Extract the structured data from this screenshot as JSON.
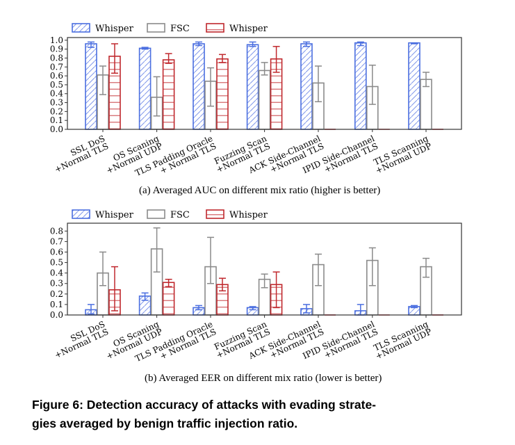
{
  "colors": {
    "whisper_blue": "#4a6ee0",
    "fsc": "#8a8a8a",
    "whisper_red": "#c0282d"
  },
  "captions": {
    "a": "(a)  Averaged AUC on different mix ratio (higher is better)",
    "b": "(b)  Averaged EER on different mix ratio (lower is better)",
    "figure_line1": "Figure 6: Detection accuracy of attacks with evading strate-",
    "figure_line2": "gies averaged by benign traffic injection ratio."
  },
  "chart_data": [
    {
      "type": "bar",
      "title": "",
      "xlabel": "",
      "ylabel": "",
      "ylim": [
        0,
        1.03
      ],
      "yticks": [
        "0.0",
        "0.1",
        "0.2",
        "0.3",
        "0.4",
        "0.5",
        "0.6",
        "0.7",
        "0.8",
        "0.9",
        "1.0"
      ],
      "legend": "top-outside",
      "categories": [
        [
          "SSL DoS",
          "+Normal TLS"
        ],
        [
          "OS Scaning",
          "+Normal UDP"
        ],
        [
          "TLS Padding Oracle",
          "+ Normal TLS"
        ],
        [
          "Fuzzing Scan",
          "+Normal TLS"
        ],
        [
          "ACK Side-Channel",
          "+Normal TLS"
        ],
        [
          "IPID Side-Channel",
          "+Normal TLS"
        ],
        [
          "TLS Scanning",
          "+Normal UDP"
        ]
      ],
      "series": [
        {
          "name": "Whisper",
          "hatch": "diagonal",
          "values": [
            0.96,
            0.91,
            0.96,
            0.95,
            0.96,
            0.97,
            0.97
          ],
          "err_low": [
            0.92,
            0.9,
            0.94,
            0.93,
            0.93,
            0.94,
            0.96
          ],
          "err_high": [
            0.98,
            0.92,
            0.98,
            0.98,
            0.98,
            0.98,
            0.97
          ]
        },
        {
          "name": "FSC",
          "hatch": "none",
          "values": [
            0.61,
            0.36,
            0.54,
            0.66,
            0.52,
            0.48,
            0.56
          ],
          "err_low": [
            0.39,
            0.15,
            0.26,
            0.61,
            0.31,
            0.28,
            0.48
          ],
          "err_high": [
            0.71,
            0.59,
            0.69,
            0.75,
            0.71,
            0.72,
            0.64
          ]
        },
        {
          "name": "Whisper",
          "hatch": "horizontal",
          "values": [
            0.82,
            0.78,
            0.79,
            0.79,
            0,
            0,
            0
          ],
          "err_low": [
            0.63,
            0.74,
            0.75,
            0.64,
            0,
            0,
            0
          ],
          "err_high": [
            0.96,
            0.85,
            0.84,
            0.93,
            0,
            0,
            0
          ]
        }
      ]
    },
    {
      "type": "bar",
      "title": "",
      "xlabel": "",
      "ylabel": "",
      "ylim": [
        0,
        0.875
      ],
      "yticks": [
        "0.0",
        "0.1",
        "0.2",
        "0.3",
        "0.4",
        "0.5",
        "0.6",
        "0.7",
        "0.8"
      ],
      "legend": "top-outside",
      "categories": [
        [
          "SSL DoS",
          "+Normal TLS"
        ],
        [
          "OS Scaning",
          "+Normal UDP"
        ],
        [
          "TLS Padding Oracle",
          "+ Normal TLS"
        ],
        [
          "Fuzzing Scan",
          "+Normal TLS"
        ],
        [
          "ACK Side-Channel",
          "+Normal TLS"
        ],
        [
          "IPID Side-Channel",
          "+Normal TLS"
        ],
        [
          "TLS Scanning",
          "+Normal UDP"
        ]
      ],
      "series": [
        {
          "name": "Whisper",
          "hatch": "diagonal",
          "values": [
            0.05,
            0.18,
            0.07,
            0.07,
            0.06,
            0.04,
            0.08
          ],
          "err_low": [
            0.01,
            0.14,
            0.05,
            0.05,
            0.02,
            0.0,
            0.07
          ],
          "err_high": [
            0.1,
            0.21,
            0.09,
            0.08,
            0.1,
            0.1,
            0.09
          ]
        },
        {
          "name": "FSC",
          "hatch": "none",
          "values": [
            0.4,
            0.63,
            0.46,
            0.34,
            0.48,
            0.52,
            0.46
          ],
          "err_low": [
            0.28,
            0.41,
            0.3,
            0.26,
            0.28,
            0.28,
            0.36
          ],
          "err_high": [
            0.6,
            0.83,
            0.74,
            0.39,
            0.58,
            0.64,
            0.54
          ]
        },
        {
          "name": "Whisper",
          "hatch": "horizontal",
          "values": [
            0.24,
            0.31,
            0.29,
            0.29,
            0,
            0,
            0
          ],
          "err_low": [
            0.04,
            0.27,
            0.23,
            0.07,
            0,
            0,
            0
          ],
          "err_high": [
            0.46,
            0.34,
            0.35,
            0.41,
            0,
            0,
            0
          ]
        }
      ]
    }
  ]
}
